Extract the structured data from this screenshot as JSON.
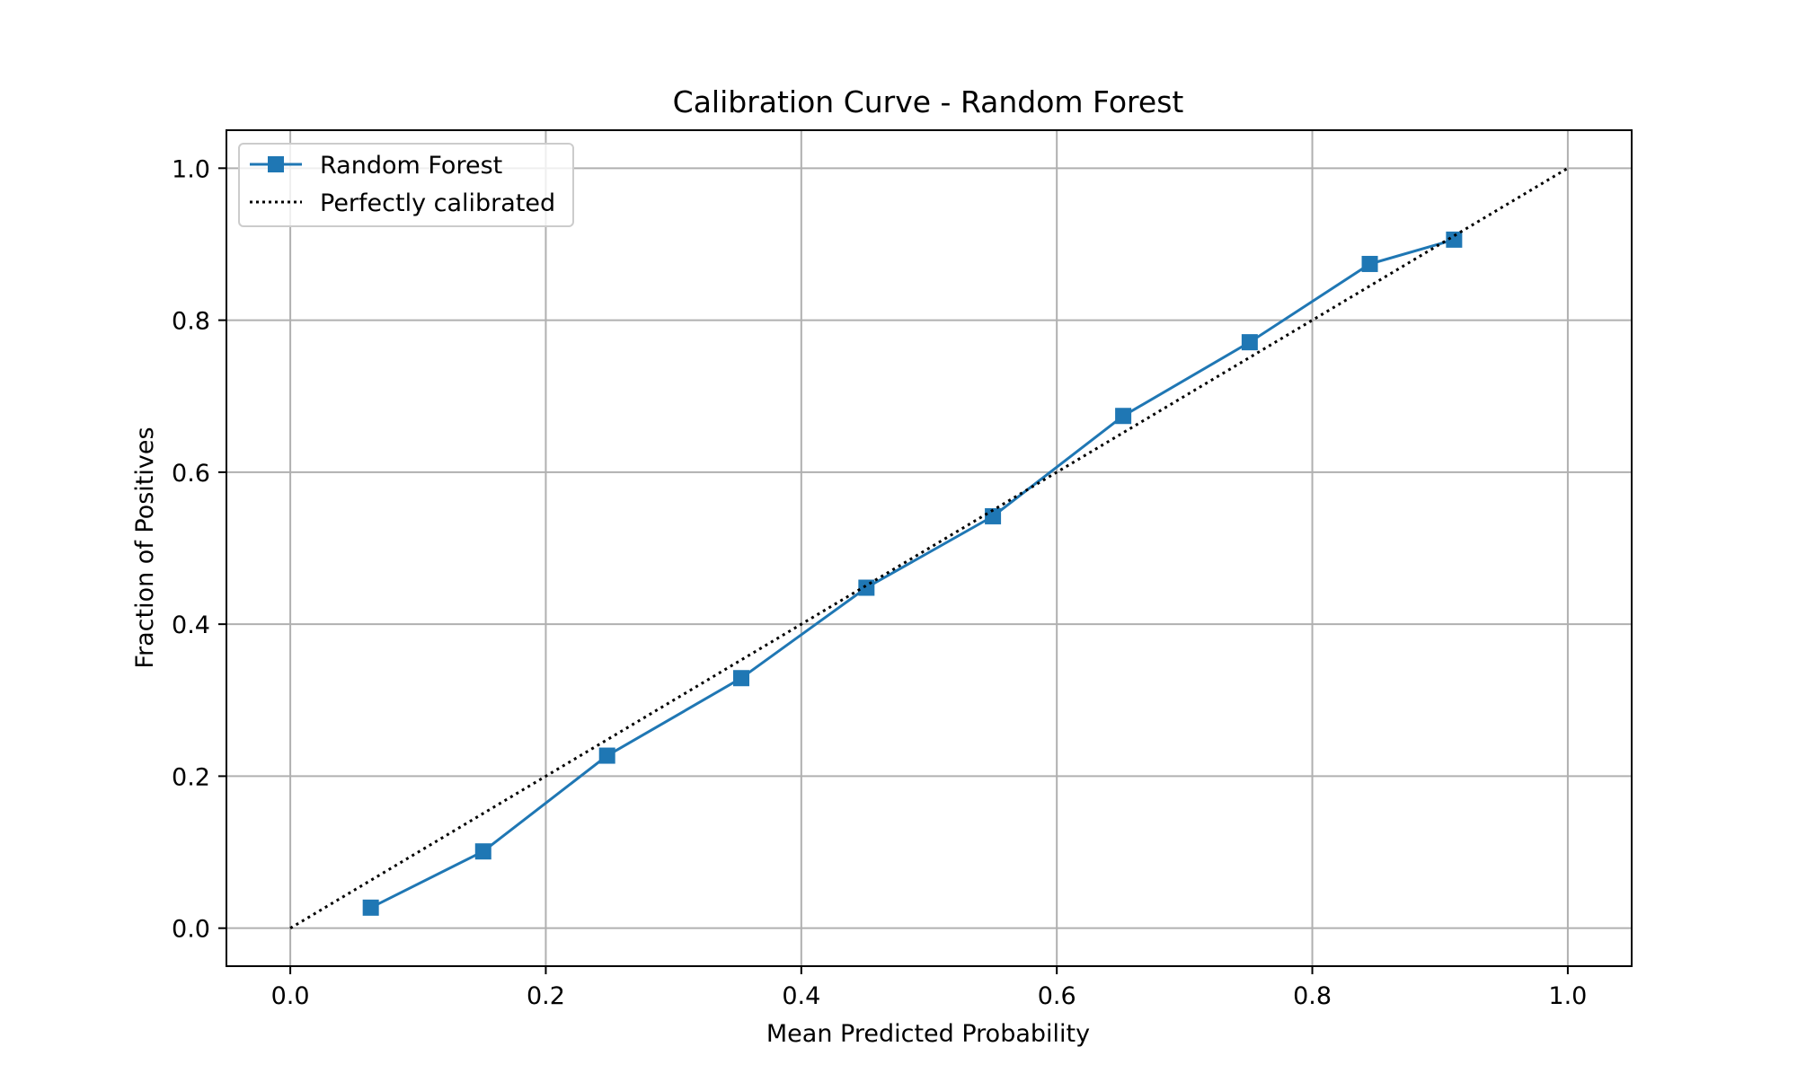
{
  "chart_data": {
    "type": "line",
    "title": "Calibration Curve - Random Forest",
    "xlabel": "Mean Predicted Probability",
    "ylabel": "Fraction of Positives",
    "xlim": [
      -0.05,
      1.05
    ],
    "ylim": [
      -0.05,
      1.05
    ],
    "xticks": [
      0.0,
      0.2,
      0.4,
      0.6,
      0.8,
      1.0
    ],
    "yticks": [
      0.0,
      0.2,
      0.4,
      0.6,
      0.8,
      1.0
    ],
    "xtick_labels": [
      "0.0",
      "0.2",
      "0.4",
      "0.6",
      "0.8",
      "1.0"
    ],
    "ytick_labels": [
      "0.0",
      "0.2",
      "0.4",
      "0.6",
      "0.8",
      "1.0"
    ],
    "grid": true,
    "legend_position": "upper-left",
    "series": [
      {
        "name": "Random Forest",
        "color": "#1f77b4",
        "line_style": "solid",
        "marker": "square",
        "x": [
          0.063,
          0.151,
          0.248,
          0.353,
          0.451,
          0.55,
          0.652,
          0.751,
          0.845,
          0.911
        ],
        "y": [
          0.027,
          0.101,
          0.227,
          0.329,
          0.448,
          0.542,
          0.674,
          0.771,
          0.874,
          0.906
        ]
      },
      {
        "name": "Perfectly calibrated",
        "color": "#000000",
        "line_style": "dotted",
        "marker": "none",
        "x": [
          0.0,
          1.0
        ],
        "y": [
          0.0,
          1.0
        ]
      }
    ]
  }
}
